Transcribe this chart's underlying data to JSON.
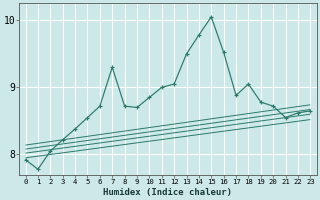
{
  "xlabel": "Humidex (Indice chaleur)",
  "ylabel": "",
  "background_color": "#cce8e8",
  "grid_color": "#ffffff",
  "line_color": "#2a7a6a",
  "xlim": [
    -0.5,
    23.5
  ],
  "ylim": [
    7.7,
    10.25
  ],
  "yticks": [
    8,
    9,
    10
  ],
  "main_x": [
    0,
    1,
    2,
    3,
    4,
    5,
    6,
    7,
    8,
    9,
    10,
    11,
    12,
    13,
    14,
    15,
    16,
    17,
    18,
    19,
    20,
    21,
    22,
    23
  ],
  "main_y": [
    7.92,
    7.78,
    8.05,
    8.22,
    8.38,
    8.55,
    8.72,
    9.3,
    8.72,
    8.7,
    8.85,
    9.0,
    9.05,
    9.5,
    9.78,
    10.05,
    9.52,
    8.88,
    9.05,
    8.78,
    8.72,
    8.55,
    8.62,
    8.65
  ],
  "band_lines": [
    [
      7.95,
      8.52
    ],
    [
      8.02,
      8.6
    ],
    [
      8.08,
      8.67
    ],
    [
      8.14,
      8.74
    ]
  ]
}
